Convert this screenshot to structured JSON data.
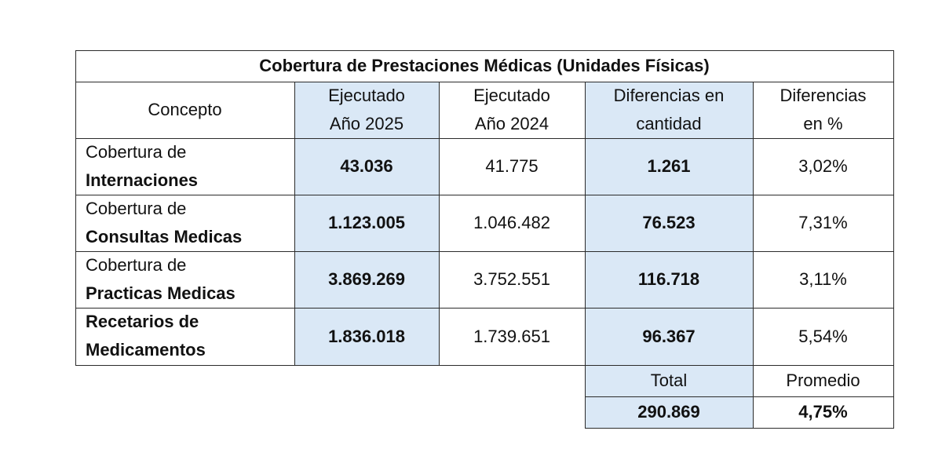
{
  "table": {
    "title": "Cobertura de Prestaciones Médicas (Unidades Físicas)",
    "headers": {
      "concepto": "Concepto",
      "ejecutado_2025": [
        "Ejecutado",
        "Año 2025"
      ],
      "ejecutado_2024": [
        "Ejecutado",
        "Año 2024"
      ],
      "diferencias_cantidad": [
        "Diferencias en",
        "cantidad"
      ],
      "diferencias_pct": [
        "Diferencias",
        "en %"
      ]
    },
    "rows": [
      {
        "concept_line1": "Cobertura de",
        "concept_line2": "Internaciones",
        "ejecutado_2025": "43.036",
        "ejecutado_2024": "41.775",
        "diferencia": "1.261",
        "porcentaje": "3,02%"
      },
      {
        "concept_line1": "Cobertura de",
        "concept_line2": "Consultas Medicas",
        "ejecutado_2025": "1.123.005",
        "ejecutado_2024": "1.046.482",
        "diferencia": "76.523",
        "porcentaje": "7,31%"
      },
      {
        "concept_line1": "Cobertura de",
        "concept_line2": "Practicas Medicas",
        "ejecutado_2025": "3.869.269",
        "ejecutado_2024": "3.752.551",
        "diferencia": "116.718",
        "porcentaje": "3,11%"
      },
      {
        "concept_line1": "Recetarios de",
        "concept_line2": "Medicamentos",
        "ejecutado_2025": "1.836.018",
        "ejecutado_2024": "1.739.651",
        "diferencia": "96.367",
        "porcentaje": "5,54%"
      }
    ],
    "summary": {
      "total_label": "Total",
      "promedio_label": "Promedio",
      "total_value": "290.869",
      "promedio_value": "4,75%"
    },
    "colors": {
      "highlight": "#dae8f6",
      "border": "#2b2b2b"
    }
  }
}
